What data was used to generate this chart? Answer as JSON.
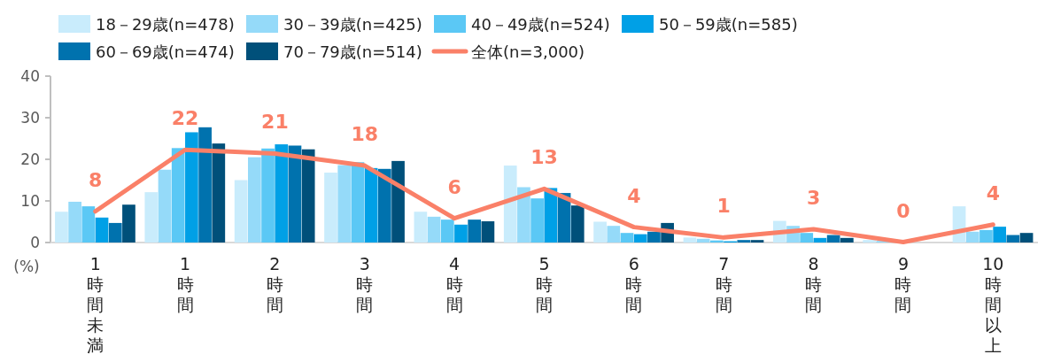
{
  "chart_data": {
    "type": "bar",
    "ylabel": "(%)",
    "categories": [
      "1時間未満",
      "1時間",
      "2時間",
      "3時間",
      "4時間",
      "5時間",
      "6時間",
      "7時間",
      "8時間",
      "9時間",
      "10時間以上"
    ],
    "ylim": [
      0,
      40
    ],
    "yticks": [
      0,
      10,
      20,
      30,
      40
    ],
    "grid": false,
    "legend": "top",
    "series": [
      {
        "name": "18－29歳(n=478)",
        "color": "#c9ecfc",
        "values": [
          7.4,
          12.1,
          15.0,
          16.8,
          7.4,
          18.5,
          5.0,
          1.2,
          5.2,
          0.6,
          8.7
        ]
      },
      {
        "name": "30－39歳(n=425)",
        "color": "#95daf9",
        "values": [
          9.8,
          17.5,
          20.5,
          18.6,
          6.2,
          13.3,
          4.0,
          0.9,
          4.0,
          0.4,
          2.6
        ]
      },
      {
        "name": "40－49歳(n=524)",
        "color": "#5bc8f5",
        "values": [
          8.7,
          22.7,
          22.6,
          19.3,
          5.5,
          10.6,
          2.3,
          0.5,
          2.3,
          null,
          3.0
        ]
      },
      {
        "name": "50－59歳(n=585)",
        "color": "#00a0e6",
        "values": [
          6.0,
          26.5,
          23.6,
          17.9,
          4.3,
          13.1,
          2.0,
          0.3,
          1.1,
          null,
          3.8
        ]
      },
      {
        "name": "60－69歳(n=474)",
        "color": "#0072ae",
        "values": [
          4.7,
          27.7,
          23.3,
          17.7,
          5.5,
          11.9,
          2.6,
          0.6,
          1.8,
          null,
          1.8
        ]
      },
      {
        "name": "70－79歳(n=514)",
        "color": "#00507a",
        "values": [
          9.1,
          23.8,
          22.4,
          19.6,
          5.1,
          8.9,
          4.7,
          0.6,
          1.1,
          null,
          2.3
        ]
      },
      {
        "name": "全体(n=3,000)",
        "type": "line",
        "color": "#fa8068",
        "values": [
          7.5,
          22.3,
          21.4,
          18.5,
          5.8,
          12.9,
          3.7,
          1.2,
          3.2,
          0.1,
          4.3
        ],
        "value_labels": [
          "8",
          "22",
          "21",
          "18",
          "6",
          "13",
          "4",
          "1",
          "3",
          "0",
          "4"
        ]
      }
    ]
  }
}
